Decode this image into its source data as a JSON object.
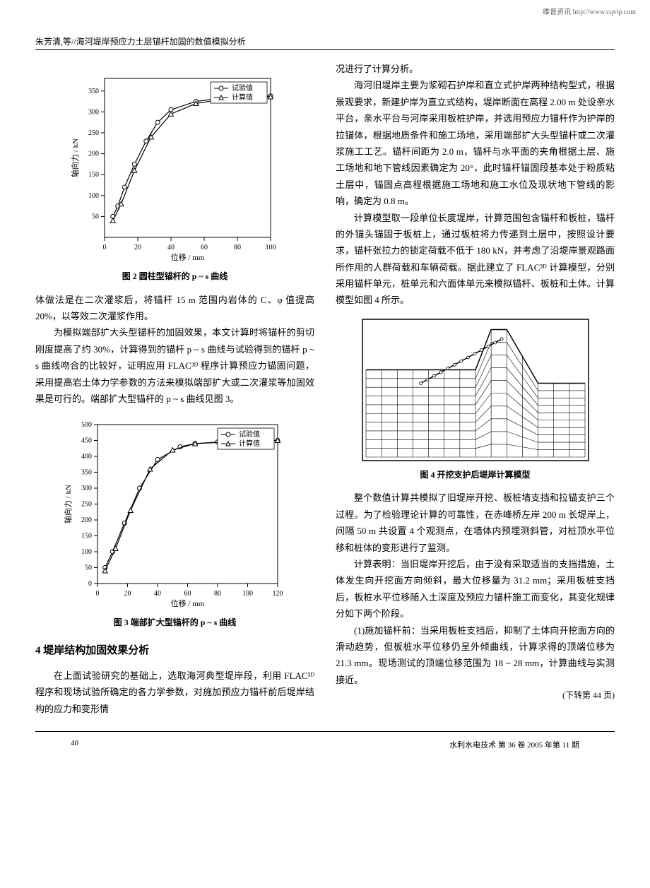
{
  "header": {
    "link_text": "维普资讯 http://www.cqvip.com",
    "author_title": "朱芳清,等//海河堤岸预应力土层锚杆加固的数值模拟分析"
  },
  "chart2": {
    "type": "line",
    "title": "图 2  圆柱型锚杆的 p ~ s 曲线",
    "xlabel": "位移 / mm",
    "ylabel": "轴向力 / kN",
    "xlim": [
      0,
      100
    ],
    "ylim": [
      0,
      380
    ],
    "xtick_step": 20,
    "ytick_major": [
      50,
      100,
      150,
      200,
      250,
      300,
      350
    ],
    "xticks": [
      0,
      20,
      40,
      60,
      80,
      100
    ],
    "legend": [
      "试验值",
      "计算值"
    ],
    "legend_markers": [
      "circle",
      "triangle"
    ],
    "series1_x": [
      5,
      8,
      12,
      18,
      25,
      32,
      40,
      55,
      75,
      100
    ],
    "series1_y": [
      50,
      75,
      120,
      175,
      230,
      275,
      305,
      325,
      335,
      338
    ],
    "series2_x": [
      5,
      10,
      18,
      28,
      40,
      55,
      75,
      100
    ],
    "series2_y": [
      40,
      80,
      160,
      240,
      295,
      320,
      333,
      336
    ],
    "line_color": "#000000",
    "marker_size": 4,
    "background_color": "#ffffff",
    "grid_color": "#000000"
  },
  "chart3": {
    "type": "line",
    "title": "图 3  端部扩大型锚杆的 p ~ s 曲线",
    "xlabel": "位移 / mm",
    "ylabel": "轴向力 / kN",
    "xlim": [
      0,
      120
    ],
    "ylim": [
      0,
      500
    ],
    "xtick_step": 20,
    "ytick_step": 50,
    "xticks": [
      0,
      20,
      40,
      60,
      80,
      100,
      120
    ],
    "yticks": [
      0,
      50,
      100,
      150,
      200,
      250,
      300,
      350,
      400,
      450,
      500
    ],
    "legend": [
      "试验值",
      "计算值"
    ],
    "legend_markers": [
      "circle",
      "triangle"
    ],
    "series1_x": [
      5,
      10,
      18,
      28,
      40,
      55,
      65,
      80,
      100,
      120
    ],
    "series1_y": [
      50,
      100,
      190,
      300,
      390,
      430,
      440,
      445,
      448,
      450
    ],
    "series2_x": [
      5,
      12,
      22,
      35,
      50,
      65,
      85,
      105,
      120
    ],
    "series2_y": [
      40,
      110,
      230,
      360,
      420,
      440,
      445,
      448,
      450
    ],
    "line_color": "#000000",
    "marker_size": 4,
    "background_color": "#ffffff"
  },
  "fig4": {
    "title": "图 4  开挖支护后堤岸计算模型"
  },
  "text": {
    "p1": "体做法是在二次灌浆后，将锚杆 15 m 范围内岩体的 C、φ 值提高 20%，以等效二次灌浆作用。",
    "p2": "为模拟端部扩大头型锚杆的加固效果，本文计算时将锚杆的剪切刚度提高了约 30%，计算得到的锚杆 p ~ s 曲线与试验得到的锚杆 p ~ s 曲线吻合的比较好，证明应用 FLAC³ᴰ 程序计算预应力锚固问题，采用提高岩土体力学参数的方法来模拟端部扩大或二次灌浆等加固效果是可行的。端部扩大型锚杆的 p ~ s 曲线见图 3。",
    "section4": "4  堤岸结构加固效果分析",
    "p3": "在上面试验研究的基础上，选取海河典型堤岸段，利用 FLAC³ᴰ 程序和现场试验所确定的各力学参数，对施加预应力锚杆前后堤岸结构的应力和变形情",
    "p4": "况进行了计算分析。",
    "p5": "海河旧堤岸主要为浆砌石护岸和直立式护岸两种结构型式，根据景观要求，新建护岸为直立式结构，堤岸断面在高程 2.00 m 处设亲水平台，亲水平台与河岸采用板桩护岸，并选用预应力锚杆作为护岸的拉锚体，根据地质条件和施工场地，采用端部扩大头型锚杆或二次灌浆施工工艺。锚杆间距为 2.0 m，锚杆与水平面的夹角根据土层、施工场地和地下管线因素确定为 20°，此时锚杆锚固段基本处于粉质粘土层中，锚固点高程根据施工场地和施工水位及现状地下管线的影响，确定为 0.8 m。",
    "p6": "计算模型取一段单位长度堤岸，计算范围包含锚杆和板桩，锚杆的外锚头锚固于板桩上，通过板桩将力传递到土层中，按照设计要求，锚杆张拉力的锁定荷载不低于 180 kN，并考虑了沿堤岸景观路面所作用的人群荷载和车辆荷载。据此建立了 FLAC³ᴰ 计算模型，分别采用锚杆单元，桩单元和六面体单元来模拟锚杆、板桩和土体。计算模型如图 4 所示。",
    "p7": "整个数值计算共模拟了旧堤岸开挖、板桩墙支挡和拉锚支护三个过程。为了检验理论计算的可靠性，在赤峰桥左岸 200 m 长堤岸上，间隔 50 m 共设置 4 个观测点，在墙体内预埋测斜管，对桩顶水平位移和桩体的变形进行了监测。",
    "p8": "计算表明：当旧堤岸开挖后，由于没有采取适当的支挡措施，土体发生向开挖面方向倾斜，最大位移量为 31.2 mm；采用板桩支挡后，板桩水平位移随入土深度及预应力锚杆施工而变化，其变化规律分如下两个阶段。",
    "p9": "(1)施加锚杆前：当采用板桩支挡后，抑制了土体向开挖面方向的滑动趋势，但板桩水平位移仍呈外倾曲线，计算求得的顶端位移为 21.3 mm。现场测试的顶端位移范围为 18 ~ 28 mm，计算曲线与实测接近。",
    "continued": "(下转第 44 页)"
  },
  "footer": {
    "page": "40",
    "journal": "水利水电技术  第 36 卷  2005 年第 11 期"
  }
}
